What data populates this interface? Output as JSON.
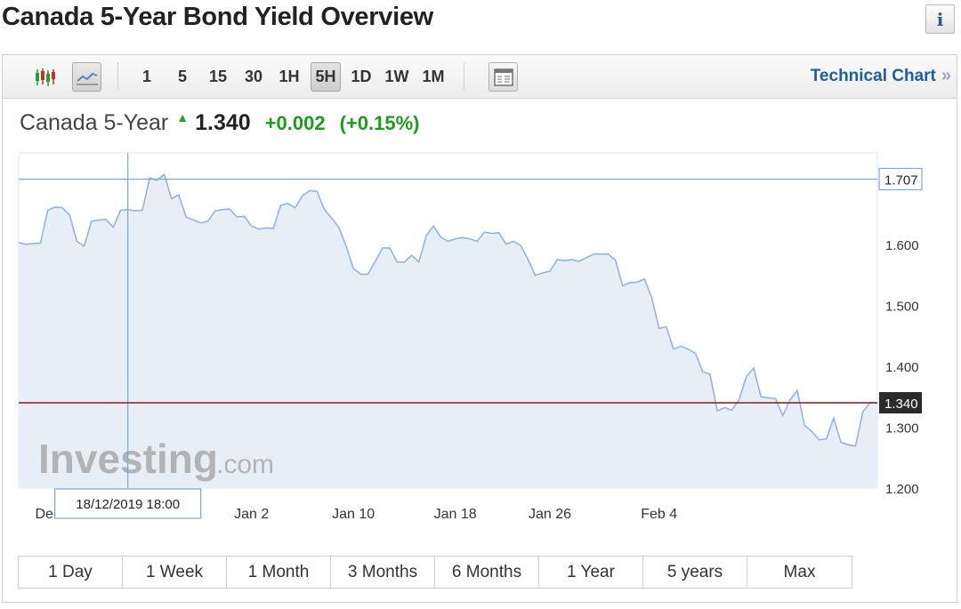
{
  "page": {
    "title": "Canada 5-Year Bond Yield Overview",
    "info_icon": "info-icon"
  },
  "toolbar": {
    "candlestick_icon": "candlestick-icon",
    "line_chart_icon": "line-chart-icon",
    "intervals": [
      "1",
      "5",
      "15",
      "30",
      "1H",
      "5H",
      "1D",
      "1W",
      "1M"
    ],
    "active_interval": "5H",
    "layout_icon": "window-icon",
    "technical_chart_label": "Technical Chart",
    "technical_chart_chevron": "»"
  },
  "quote": {
    "name": "Canada 5-Year",
    "arrow_icon": "up-arrow-icon",
    "price": "1.340",
    "change": "+0.002",
    "change_pct": "(+0.15%)",
    "color_up": "#1f9a1f"
  },
  "watermark": {
    "brand": "Investing",
    "suffix": ".com"
  },
  "crosshair": {
    "date_label": "18/12/2019 18:00",
    "value_label": "1.707"
  },
  "chart_data": {
    "type": "area",
    "title": "",
    "xlabel": "",
    "ylabel": "",
    "ylim": [
      1.2,
      1.75
    ],
    "yticks": [
      "1.200",
      "1.300",
      "1.400",
      "1.500",
      "1.600"
    ],
    "xticks": [
      {
        "label": "Dec",
        "index": 4
      },
      {
        "label": "Jan 2",
        "index": 32
      },
      {
        "label": "Jan 10",
        "index": 46
      },
      {
        "label": "Jan 18",
        "index": 60
      },
      {
        "label": "Jan 26",
        "index": 73
      },
      {
        "label": "Feb 4",
        "index": 88
      }
    ],
    "last_value": 1.34,
    "last_value_label": "1.340",
    "crosshair_index": 15,
    "crosshair_value": 1.707,
    "line_color": "#8fb6e0",
    "fill_color": "#e8eef6",
    "last_line_color": "#8a2a2a",
    "series": [
      {
        "values": [
          1.603,
          1.6,
          1.601,
          1.602,
          1.656,
          1.661,
          1.66,
          1.648,
          1.605,
          1.597,
          1.638,
          1.64,
          1.641,
          1.628,
          1.656,
          1.657,
          1.655,
          1.656,
          1.709,
          1.705,
          1.715,
          1.675,
          1.681,
          1.645,
          1.64,
          1.635,
          1.638,
          1.655,
          1.657,
          1.658,
          1.645,
          1.646,
          1.63,
          1.625,
          1.627,
          1.626,
          1.664,
          1.667,
          1.66,
          1.68,
          1.688,
          1.687,
          1.657,
          1.643,
          1.628,
          1.597,
          1.56,
          1.551,
          1.551,
          1.572,
          1.594,
          1.594,
          1.571,
          1.571,
          1.582,
          1.571,
          1.614,
          1.63,
          1.612,
          1.605,
          1.609,
          1.611,
          1.609,
          1.605,
          1.62,
          1.618,
          1.619,
          1.6,
          1.605,
          1.598,
          1.575,
          1.549,
          1.553,
          1.556,
          1.575,
          1.573,
          1.575,
          1.572,
          1.578,
          1.584,
          1.584,
          1.584,
          1.574,
          1.532,
          1.537,
          1.538,
          1.543,
          1.512,
          1.462,
          1.465,
          1.428,
          1.433,
          1.428,
          1.421,
          1.391,
          1.387,
          1.327,
          1.332,
          1.328,
          1.345,
          1.383,
          1.397,
          1.35,
          1.348,
          1.347,
          1.319,
          1.345,
          1.36,
          1.303,
          1.293,
          1.279,
          1.281,
          1.315,
          1.275,
          1.271,
          1.269,
          1.325,
          1.34,
          1.34
        ]
      }
    ]
  },
  "ranges": [
    "1 Day",
    "1 Week",
    "1 Month",
    "3 Months",
    "6 Months",
    "1 Year",
    "5 years",
    "Max"
  ]
}
